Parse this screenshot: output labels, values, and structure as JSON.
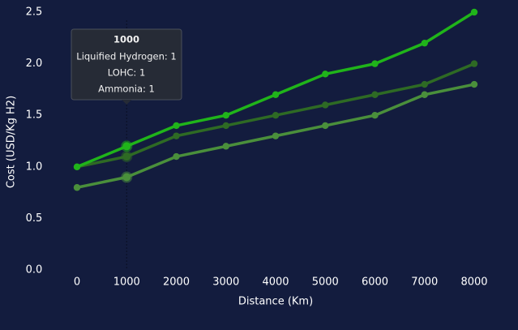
{
  "chart_data": {
    "type": "line",
    "x_label": "Distance (Km)",
    "y_label": "Cost (USD/Kg H2)",
    "x": [
      0,
      1000,
      2000,
      3000,
      4000,
      5000,
      6000,
      7000,
      8000
    ],
    "xlim": [
      0,
      8000
    ],
    "xticks": [
      0,
      1000,
      2000,
      3000,
      4000,
      5000,
      6000,
      7000,
      8000
    ],
    "ylim": [
      0,
      2.5
    ],
    "yticks": [
      {
        "value": 0,
        "label": "0.0"
      },
      0.5,
      {
        "value": 1,
        "label": "1.0"
      },
      1.5,
      {
        "value": 2,
        "label": "2.0"
      },
      2.5
    ],
    "series": [
      {
        "name": "Ammonia",
        "color": "#4a8f3b",
        "values": [
          0.8,
          0.9,
          1.1,
          1.2,
          1.3,
          1.4,
          1.5,
          1.7,
          1.8
        ]
      },
      {
        "name": "LOHC",
        "color": "#2e6a24",
        "values": [
          1.0,
          1.1,
          1.3,
          1.4,
          1.5,
          1.6,
          1.7,
          1.8,
          2.0
        ]
      },
      {
        "name": "Liquified Hydrogen",
        "color": "#20b41a",
        "values": [
          1.0,
          1.2,
          1.4,
          1.5,
          1.7,
          1.9,
          2.0,
          2.2,
          2.5
        ]
      }
    ],
    "tooltip": {
      "lines": [
        "Liquified Hydrogen: 1",
        "LOHC: 1",
        "Ammonia: 1"
      ]
    }
  }
}
